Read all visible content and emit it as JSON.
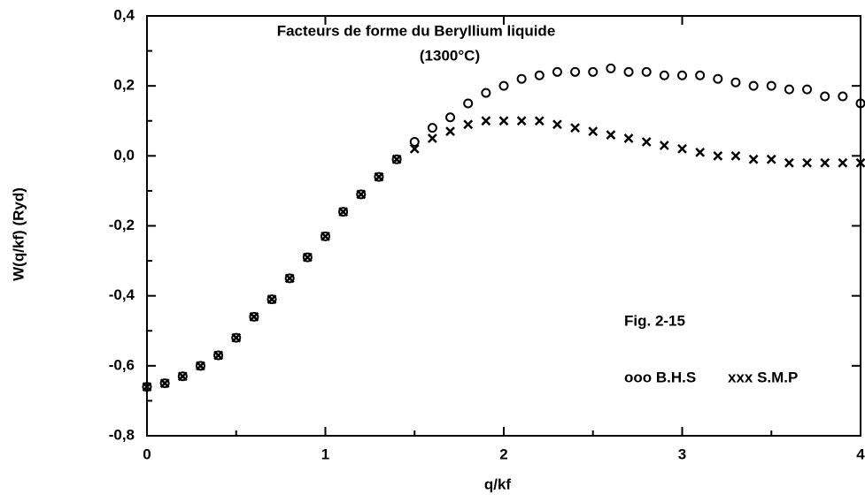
{
  "chart_data": {
    "type": "scatter",
    "title": "Facteurs de forme du Beryllium liquide",
    "subtitle": "(1300°C)",
    "annotation": "Fig. 2-15",
    "xlabel": "q/kf",
    "ylabel": "W(q/kf)  (Ryd)",
    "x": [
      0,
      0.1,
      0.2,
      0.3,
      0.4,
      0.5,
      0.6,
      0.7,
      0.8,
      0.9,
      1.0,
      1.1,
      1.2,
      1.3,
      1.4,
      1.5,
      1.6,
      1.7,
      1.8,
      1.9,
      2.0,
      2.1,
      2.2,
      2.3,
      2.4,
      2.5,
      2.6,
      2.7,
      2.8,
      2.9,
      3.0,
      3.1,
      3.2,
      3.3,
      3.4,
      3.5,
      3.6,
      3.7,
      3.8,
      3.9,
      4.0
    ],
    "series": [
      {
        "name": "ooo B.H.S",
        "marker": "circle",
        "color": "#000000",
        "values": [
          -0.66,
          -0.65,
          -0.63,
          -0.6,
          -0.57,
          -0.52,
          -0.46,
          -0.41,
          -0.35,
          -0.29,
          -0.23,
          -0.16,
          -0.11,
          -0.06,
          -0.01,
          0.04,
          0.08,
          0.11,
          0.15,
          0.18,
          0.2,
          0.22,
          0.23,
          0.24,
          0.24,
          0.24,
          0.25,
          0.24,
          0.24,
          0.23,
          0.23,
          0.23,
          0.22,
          0.21,
          0.2,
          0.2,
          0.19,
          0.19,
          0.17,
          0.17,
          0.15
        ]
      },
      {
        "name": "xxx S.M.P",
        "marker": "cross",
        "color": "#000000",
        "values": [
          -0.66,
          -0.65,
          -0.63,
          -0.6,
          -0.57,
          -0.52,
          -0.46,
          -0.41,
          -0.35,
          -0.29,
          -0.23,
          -0.16,
          -0.11,
          -0.06,
          -0.01,
          0.02,
          0.05,
          0.07,
          0.09,
          0.1,
          0.1,
          0.1,
          0.1,
          0.09,
          0.08,
          0.07,
          0.06,
          0.05,
          0.04,
          0.03,
          0.02,
          0.01,
          0.0,
          0.0,
          -0.01,
          -0.01,
          -0.02,
          -0.02,
          -0.02,
          -0.02,
          -0.02
        ]
      }
    ],
    "xlim": [
      0,
      4
    ],
    "xticks": [
      0,
      1,
      2,
      3,
      4
    ],
    "ylim": [
      -0.8,
      0.4
    ],
    "yticks": [
      {
        "value": -0.8,
        "label": "-0,8"
      },
      {
        "value": -0.6,
        "label": "-0,6"
      },
      {
        "value": -0.4,
        "label": "-0,4"
      },
      {
        "value": -0.2,
        "label": "-0,2"
      },
      {
        "value": 0,
        "label": "0,0"
      },
      {
        "value": 0.2,
        "label": "0,2"
      },
      {
        "value": 0.4,
        "label": "0,4"
      }
    ],
    "grid": false
  }
}
